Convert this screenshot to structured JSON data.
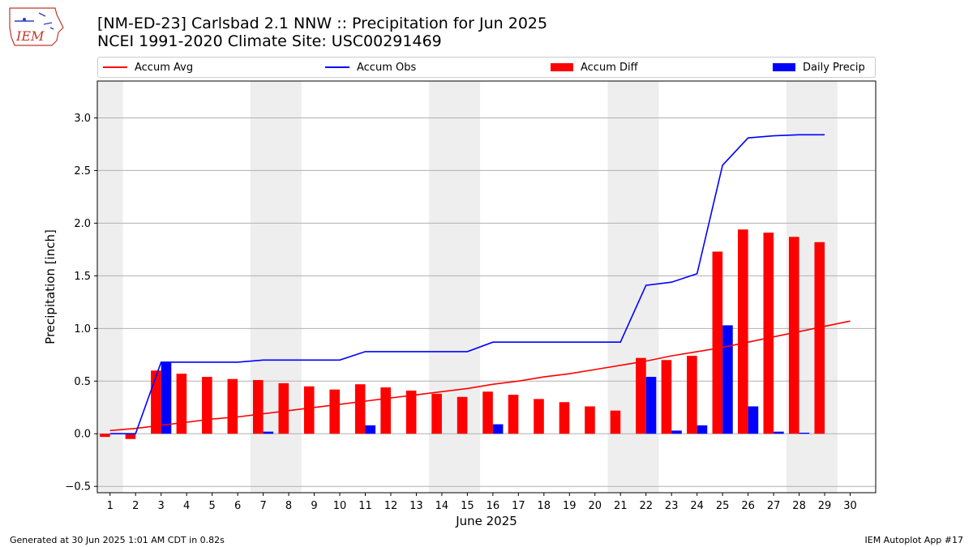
{
  "title_line1": "[NM-ED-23] Carlsbad 2.1 NNW :: Precipitation for Jun 2025",
  "title_line2": "NCEI 1991-2020 Climate Site: USC00291469",
  "logo_text": "IEM",
  "footer_left": "Generated at 30 Jun 2025 1:01 AM CDT in 0.82s",
  "footer_right": "IEM Autoplot App #17",
  "colors": {
    "avg": "#ff0000",
    "obs": "#0000ff",
    "diff": "#ff0000",
    "daily": "#0000ff",
    "weekend": "#eeeeee",
    "grid": "#b0b0b0"
  },
  "chart_data": {
    "type": "bar",
    "xlabel": "June 2025",
    "ylabel": "Precipitation [inch]",
    "x": [
      1,
      2,
      3,
      4,
      5,
      6,
      7,
      8,
      9,
      10,
      11,
      12,
      13,
      14,
      15,
      16,
      17,
      18,
      19,
      20,
      21,
      22,
      23,
      24,
      25,
      26,
      27,
      28,
      29,
      30
    ],
    "xticks": [
      "1",
      "2",
      "3",
      "4",
      "5",
      "6",
      "7",
      "8",
      "9",
      "10",
      "11",
      "12",
      "13",
      "14",
      "15",
      "16",
      "17",
      "18",
      "19",
      "20",
      "21",
      "22",
      "23",
      "24",
      "25",
      "26",
      "27",
      "28",
      "29",
      "30"
    ],
    "xlim": [
      0.5,
      31.0
    ],
    "ylim": [
      -0.56,
      3.35
    ],
    "yticks": [
      -0.5,
      0.0,
      0.5,
      1.0,
      1.5,
      2.0,
      2.5,
      3.0
    ],
    "ytick_labels": [
      "−0.5",
      "0.0",
      "0.5",
      "1.0",
      "1.5",
      "2.0",
      "2.5",
      "3.0"
    ],
    "grid": true,
    "legend_position": "top",
    "weekends": [
      [
        0.5,
        1.5
      ],
      [
        6.5,
        8.5
      ],
      [
        13.5,
        15.5
      ],
      [
        20.5,
        22.5
      ],
      [
        27.5,
        29.5
      ]
    ],
    "series": [
      {
        "name": "Accum Avg",
        "kind": "line",
        "x": [
          1,
          2,
          3,
          4,
          5,
          6,
          7,
          8,
          9,
          10,
          11,
          12,
          13,
          14,
          15,
          16,
          17,
          18,
          19,
          20,
          21,
          22,
          23,
          24,
          25,
          26,
          27,
          28,
          29,
          30
        ],
        "values": [
          0.03,
          0.05,
          0.08,
          0.11,
          0.14,
          0.16,
          0.19,
          0.22,
          0.25,
          0.28,
          0.31,
          0.34,
          0.37,
          0.4,
          0.43,
          0.47,
          0.5,
          0.54,
          0.57,
          0.61,
          0.65,
          0.69,
          0.74,
          0.78,
          0.82,
          0.87,
          0.92,
          0.97,
          1.02,
          1.07
        ]
      },
      {
        "name": "Accum Obs",
        "kind": "line",
        "x": [
          1,
          2,
          3,
          4,
          5,
          6,
          7,
          8,
          9,
          10,
          11,
          12,
          13,
          14,
          15,
          16,
          17,
          18,
          19,
          20,
          21,
          22,
          23,
          24,
          25,
          26,
          27,
          28,
          29
        ],
        "values": [
          0.0,
          0.0,
          0.68,
          0.68,
          0.68,
          0.68,
          0.7,
          0.7,
          0.7,
          0.7,
          0.78,
          0.78,
          0.78,
          0.78,
          0.78,
          0.87,
          0.87,
          0.87,
          0.87,
          0.87,
          0.87,
          1.41,
          1.44,
          1.52,
          2.55,
          2.81,
          2.83,
          2.84,
          2.84
        ]
      },
      {
        "name": "Accum Diff",
        "kind": "bar",
        "x": [
          1,
          2,
          3,
          4,
          5,
          6,
          7,
          8,
          9,
          10,
          11,
          12,
          13,
          14,
          15,
          16,
          17,
          18,
          19,
          20,
          21,
          22,
          23,
          24,
          25,
          26,
          27,
          28,
          29
        ],
        "values": [
          -0.03,
          -0.05,
          0.6,
          0.57,
          0.54,
          0.52,
          0.51,
          0.48,
          0.45,
          0.42,
          0.47,
          0.44,
          0.41,
          0.38,
          0.35,
          0.4,
          0.37,
          0.33,
          0.3,
          0.26,
          0.22,
          0.72,
          0.7,
          0.74,
          1.73,
          1.94,
          1.91,
          1.87,
          1.82
        ]
      },
      {
        "name": "Daily Precip",
        "kind": "bar",
        "x": [
          1,
          2,
          3,
          4,
          5,
          6,
          7,
          8,
          9,
          10,
          11,
          12,
          13,
          14,
          15,
          16,
          17,
          18,
          19,
          20,
          21,
          22,
          23,
          24,
          25,
          26,
          27,
          28,
          29
        ],
        "values": [
          0,
          0,
          0.68,
          0,
          0,
          0,
          0.02,
          0,
          0,
          0,
          0.08,
          0,
          0,
          0,
          0,
          0.09,
          0,
          0,
          0,
          0,
          0,
          0.54,
          0.03,
          0.08,
          1.03,
          0.26,
          0.02,
          0.01,
          0
        ]
      }
    ]
  }
}
